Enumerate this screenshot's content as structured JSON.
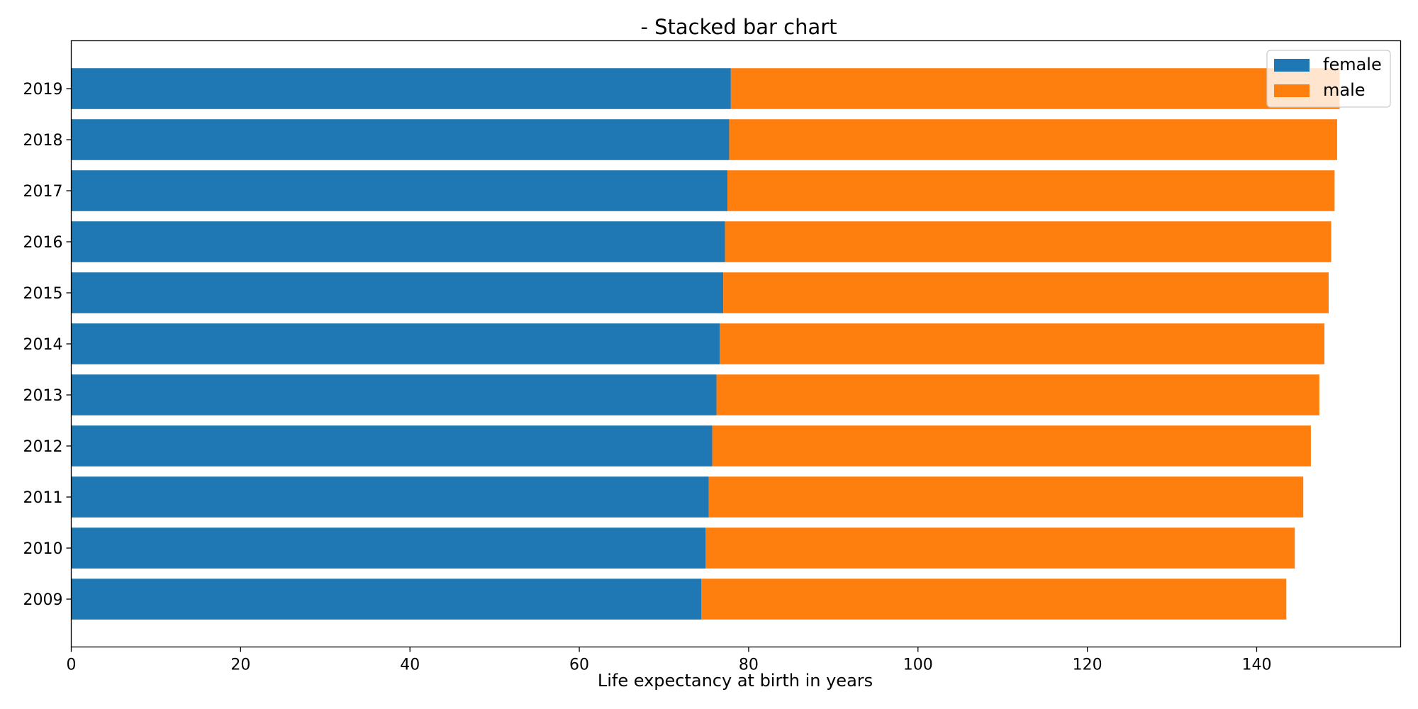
{
  "chart_data": {
    "type": "bar",
    "orientation": "horizontal",
    "stacked": true,
    "title": "- Stacked bar chart",
    "xlabel": "Life expectancy at birth in years",
    "ylabel": "",
    "xlim": [
      0,
      157
    ],
    "xticks": [
      0,
      20,
      40,
      60,
      80,
      100,
      120,
      140
    ],
    "grid": false,
    "legend_position": "top-right",
    "categories": [
      "2009",
      "2010",
      "2011",
      "2012",
      "2013",
      "2014",
      "2015",
      "2016",
      "2017",
      "2018",
      "2019"
    ],
    "series": [
      {
        "name": "female",
        "color": "#1f77b4",
        "values": [
          74.4,
          74.9,
          75.3,
          75.7,
          76.2,
          76.6,
          77.0,
          77.2,
          77.5,
          77.7,
          77.9
        ]
      },
      {
        "name": "male",
        "color": "#ff7f0e",
        "values": [
          69.1,
          69.6,
          70.2,
          70.7,
          71.2,
          71.4,
          71.5,
          71.6,
          71.7,
          71.8,
          71.9
        ]
      }
    ]
  }
}
